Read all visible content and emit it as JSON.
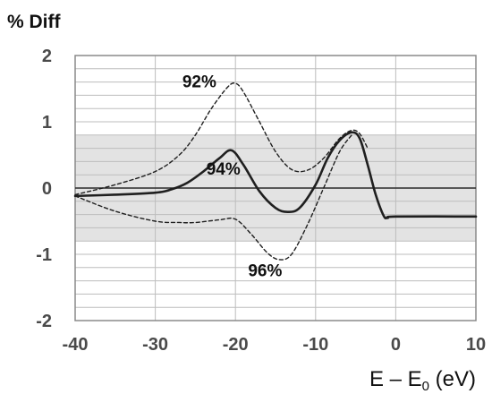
{
  "chart_data": {
    "type": "line",
    "title": "",
    "ylabel": "% Diff",
    "xlabel_main": "E – E",
    "xlabel_sub": "0",
    "xlabel_unit": " (eV)",
    "xlim": [
      -40,
      10
    ],
    "ylim": [
      -2,
      2
    ],
    "xticks": [
      -40,
      -30,
      -20,
      -10,
      0,
      10
    ],
    "yticks": [
      -2,
      -1,
      0,
      1,
      2
    ],
    "ygrid_step": 0.2,
    "grid": true,
    "shaded_band": {
      "y_min": -0.8,
      "y_max": 0.8,
      "color": "#e3e3e3"
    },
    "zero_line": true,
    "series": [
      {
        "name": "94%",
        "style": "solid",
        "color": "#1f1f1f",
        "x": [
          -40,
          -35,
          -30,
          -28,
          -26,
          -24,
          -22,
          -20.5,
          -19,
          -17,
          -15,
          -13.5,
          -12,
          -10,
          -8.5,
          -7,
          -5.5,
          -4.5,
          -3.5,
          -2.5,
          -1.5,
          -1,
          0,
          10
        ],
        "y": [
          -0.12,
          -0.1,
          -0.07,
          -0.02,
          0.08,
          0.25,
          0.45,
          0.57,
          0.35,
          -0.05,
          -0.3,
          -0.36,
          -0.3,
          0.05,
          0.45,
          0.72,
          0.84,
          0.75,
          0.35,
          -0.1,
          -0.42,
          -0.45,
          -0.43,
          -0.43
        ]
      },
      {
        "name": "92%",
        "style": "dashed",
        "color": "#1f1f1f",
        "x": [
          -40,
          -35,
          -30,
          -27,
          -25,
          -23,
          -21,
          -20,
          -19,
          -17,
          -15,
          -13,
          -11,
          -9,
          -7,
          -5.5,
          -4.5,
          -3.5
        ],
        "y": [
          -0.1,
          0.05,
          0.25,
          0.5,
          0.8,
          1.2,
          1.52,
          1.58,
          1.45,
          1.0,
          0.55,
          0.28,
          0.27,
          0.45,
          0.75,
          0.87,
          0.82,
          0.6
        ]
      },
      {
        "name": "96%",
        "style": "dashed",
        "color": "#1f1f1f",
        "x": [
          -40,
          -35,
          -30,
          -27,
          -25,
          -22,
          -20,
          -18,
          -16,
          -14.5,
          -13,
          -11,
          -9,
          -7,
          -5.5
        ],
        "y": [
          -0.12,
          -0.35,
          -0.5,
          -0.52,
          -0.52,
          -0.48,
          -0.47,
          -0.7,
          -0.98,
          -1.08,
          -1.0,
          -0.55,
          0.0,
          0.55,
          0.8
        ]
      }
    ],
    "annotations": [
      {
        "text": "92%",
        "x": -24.5,
        "y": 1.52
      },
      {
        "text": "94%",
        "x": -21.5,
        "y": 0.2
      },
      {
        "text": "96%",
        "x": -16.3,
        "y": -1.33
      }
    ]
  }
}
